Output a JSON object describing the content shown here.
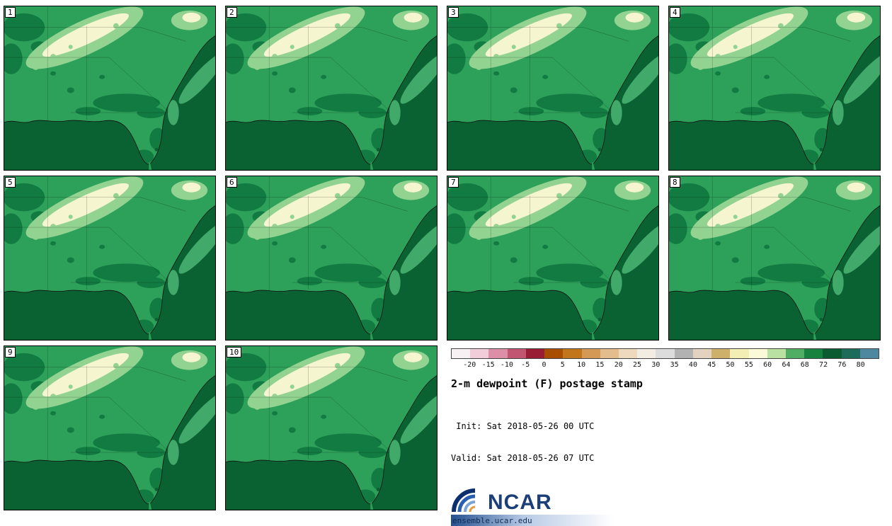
{
  "panels": [
    {
      "label": "1"
    },
    {
      "label": "2"
    },
    {
      "label": "3"
    },
    {
      "label": "4"
    },
    {
      "label": "5"
    },
    {
      "label": "6"
    },
    {
      "label": "7"
    },
    {
      "label": "8"
    },
    {
      "label": "9"
    },
    {
      "label": "10"
    }
  ],
  "colorbar": {
    "tick_labels": [
      "-20",
      "-15",
      "-10",
      "-5",
      "0",
      "5",
      "10",
      "15",
      "20",
      "25",
      "30",
      "35",
      "40",
      "45",
      "50",
      "55",
      "60",
      "64",
      "68",
      "72",
      "76",
      "80"
    ],
    "segment_colors": [
      "#f8f1f3",
      "#f0cdd9",
      "#dc8fa7",
      "#c25672",
      "#9a1d36",
      "#a84e00",
      "#c1761c",
      "#d49a55",
      "#e3bd8d",
      "#efd9bd",
      "#f2ece3",
      "#dcdcdc",
      "#b2b2b2",
      "#e2d2bf",
      "#cdb06a",
      "#f3eeb4",
      "#fafad8",
      "#b9e1a2",
      "#4fae63",
      "#17813f",
      "#0b5c31",
      "#1d6b5a",
      "#4e87a0"
    ]
  },
  "info": {
    "title": "2-m dewpoint (F) postage stamp",
    "init_line": " Init: Sat 2018-05-26 00 UTC",
    "valid_line": "Valid: Sat 2018-05-26 07 UTC"
  },
  "branding": {
    "logo_text": "NCAR",
    "site_url": "ensemble.ucar.edu"
  },
  "map_colors": {
    "base": "#2da05a",
    "dark_patch": "#117b41",
    "ocean": "#0a6233",
    "light_band": "#93d392",
    "pale_core": "#f5f5d0",
    "offshore_light": "#41a969",
    "coastline": "#111111"
  }
}
